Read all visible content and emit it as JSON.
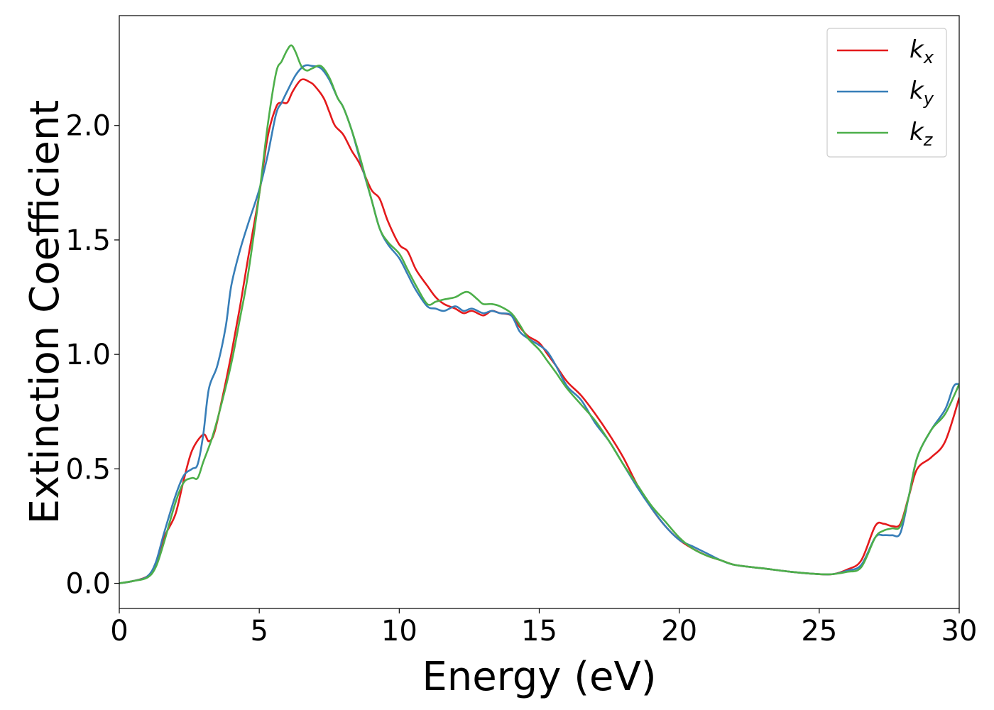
{
  "chart_data": {
    "type": "line",
    "xlabel": "Energy (eV)",
    "ylabel": "Extinction Coefficient",
    "xlim": [
      0,
      30
    ],
    "ylim": [
      -0.11,
      2.48
    ],
    "xticks": [
      0,
      5,
      10,
      15,
      20,
      25,
      30
    ],
    "xtick_labels": [
      "0",
      "5",
      "10",
      "15",
      "20",
      "25",
      "30"
    ],
    "yticks": [
      0.0,
      0.5,
      1.0,
      1.5,
      2.0
    ],
    "ytick_labels": [
      "0.0",
      "0.5",
      "1.0",
      "1.5",
      "2.0"
    ],
    "grid": false,
    "legend_position": "top-right",
    "series": [
      {
        "name": "k_x",
        "legend_main": "k",
        "legend_sub": "x",
        "color": "#e41a1c",
        "x": [
          0,
          0.5,
          1,
          1.3,
          1.6,
          2,
          2.3,
          2.6,
          3,
          3.2,
          3.4,
          3.7,
          4,
          4.3,
          4.6,
          5,
          5.3,
          5.6,
          5.8,
          6,
          6.2,
          6.5,
          6.8,
          7,
          7.3,
          7.5,
          7.7,
          8,
          8.3,
          8.6,
          9,
          9.3,
          9.6,
          10,
          10.3,
          10.6,
          11,
          11.3,
          11.6,
          12,
          12.3,
          12.6,
          13,
          13.3,
          13.6,
          14,
          14.3,
          14.6,
          15,
          15.3,
          15.6,
          16,
          16.5,
          17,
          17.5,
          18,
          18.5,
          19,
          19.5,
          20,
          20.5,
          21,
          21.5,
          22,
          23,
          24,
          25,
          25.5,
          26,
          26.5,
          27,
          27.3,
          27.6,
          27.9,
          28.2,
          28.5,
          29,
          29.5,
          30
        ],
        "y": [
          0.0,
          0.01,
          0.03,
          0.08,
          0.2,
          0.3,
          0.45,
          0.58,
          0.65,
          0.62,
          0.66,
          0.82,
          1.0,
          1.2,
          1.42,
          1.7,
          1.95,
          2.08,
          2.1,
          2.1,
          2.15,
          2.2,
          2.19,
          2.17,
          2.12,
          2.06,
          2.0,
          1.96,
          1.89,
          1.83,
          1.72,
          1.68,
          1.58,
          1.48,
          1.45,
          1.37,
          1.3,
          1.25,
          1.22,
          1.2,
          1.18,
          1.19,
          1.17,
          1.19,
          1.18,
          1.17,
          1.12,
          1.08,
          1.05,
          1.0,
          0.95,
          0.88,
          0.82,
          0.74,
          0.65,
          0.55,
          0.43,
          0.33,
          0.25,
          0.19,
          0.15,
          0.12,
          0.1,
          0.08,
          0.065,
          0.05,
          0.04,
          0.04,
          0.06,
          0.1,
          0.25,
          0.26,
          0.25,
          0.26,
          0.38,
          0.5,
          0.55,
          0.62,
          0.81
        ]
      },
      {
        "name": "k_y",
        "legend_main": "k",
        "legend_sub": "y",
        "color": "#377eb8",
        "x": [
          0,
          0.5,
          1,
          1.3,
          1.6,
          2,
          2.3,
          2.6,
          2.8,
          3,
          3.2,
          3.5,
          3.8,
          4,
          4.3,
          4.6,
          5,
          5.3,
          5.6,
          5.8,
          6,
          6.3,
          6.6,
          6.9,
          7.2,
          7.5,
          7.8,
          8,
          8.3,
          8.6,
          9,
          9.3,
          9.6,
          10,
          10.3,
          10.6,
          11,
          11.3,
          11.6,
          12,
          12.3,
          12.6,
          13,
          13.3,
          13.6,
          14,
          14.3,
          14.6,
          15,
          15.3,
          15.6,
          16,
          16.5,
          17,
          17.5,
          18,
          18.5,
          19,
          19.5,
          20,
          20.5,
          21,
          21.5,
          22,
          23,
          24,
          25,
          25.5,
          26,
          26.5,
          27,
          27.3,
          27.6,
          27.9,
          28.2,
          28.5,
          29,
          29.5,
          29.8,
          30
        ],
        "y": [
          0.0,
          0.01,
          0.03,
          0.09,
          0.22,
          0.38,
          0.47,
          0.5,
          0.52,
          0.65,
          0.85,
          0.95,
          1.12,
          1.3,
          1.45,
          1.57,
          1.72,
          1.87,
          2.05,
          2.1,
          2.15,
          2.22,
          2.26,
          2.26,
          2.25,
          2.2,
          2.12,
          2.08,
          1.98,
          1.85,
          1.68,
          1.55,
          1.48,
          1.42,
          1.35,
          1.28,
          1.21,
          1.2,
          1.19,
          1.21,
          1.19,
          1.2,
          1.18,
          1.19,
          1.18,
          1.17,
          1.1,
          1.07,
          1.04,
          1.01,
          0.95,
          0.86,
          0.8,
          0.7,
          0.62,
          0.52,
          0.42,
          0.33,
          0.25,
          0.19,
          0.16,
          0.13,
          0.1,
          0.08,
          0.065,
          0.05,
          0.04,
          0.04,
          0.055,
          0.08,
          0.2,
          0.21,
          0.21,
          0.22,
          0.38,
          0.55,
          0.67,
          0.76,
          0.86,
          0.87
        ]
      },
      {
        "name": "k_z",
        "legend_main": "k",
        "legend_sub": "z",
        "color": "#4daf4a",
        "x": [
          0,
          0.5,
          1,
          1.3,
          1.6,
          2,
          2.3,
          2.6,
          2.8,
          3,
          3.3,
          3.6,
          4,
          4.3,
          4.6,
          5,
          5.3,
          5.6,
          5.8,
          6,
          6.15,
          6.3,
          6.5,
          6.7,
          6.9,
          7.2,
          7.5,
          7.8,
          8,
          8.3,
          8.6,
          9,
          9.3,
          9.6,
          10,
          10.3,
          10.6,
          11,
          11.3,
          11.6,
          12,
          12.3,
          12.5,
          12.8,
          13,
          13.3,
          13.6,
          14,
          14.3,
          14.6,
          15,
          15.3,
          15.6,
          16,
          16.5,
          17,
          17.5,
          18,
          18.5,
          19,
          19.5,
          20,
          20.5,
          21,
          21.5,
          22,
          23,
          24,
          25,
          25.5,
          26,
          26.5,
          27,
          27.3,
          27.6,
          27.9,
          28.2,
          28.5,
          29,
          29.5,
          30
        ],
        "y": [
          0.0,
          0.01,
          0.025,
          0.07,
          0.18,
          0.35,
          0.44,
          0.46,
          0.46,
          0.53,
          0.63,
          0.76,
          0.96,
          1.15,
          1.35,
          1.7,
          2.0,
          2.23,
          2.28,
          2.33,
          2.35,
          2.32,
          2.26,
          2.24,
          2.25,
          2.26,
          2.21,
          2.12,
          2.08,
          1.98,
          1.86,
          1.68,
          1.55,
          1.49,
          1.44,
          1.37,
          1.3,
          1.22,
          1.23,
          1.24,
          1.25,
          1.27,
          1.27,
          1.24,
          1.22,
          1.22,
          1.21,
          1.18,
          1.13,
          1.07,
          1.02,
          0.97,
          0.92,
          0.85,
          0.78,
          0.71,
          0.62,
          0.52,
          0.43,
          0.34,
          0.27,
          0.2,
          0.15,
          0.12,
          0.1,
          0.08,
          0.065,
          0.05,
          0.04,
          0.04,
          0.05,
          0.07,
          0.2,
          0.23,
          0.24,
          0.25,
          0.38,
          0.55,
          0.67,
          0.74,
          0.87
        ]
      }
    ]
  }
}
